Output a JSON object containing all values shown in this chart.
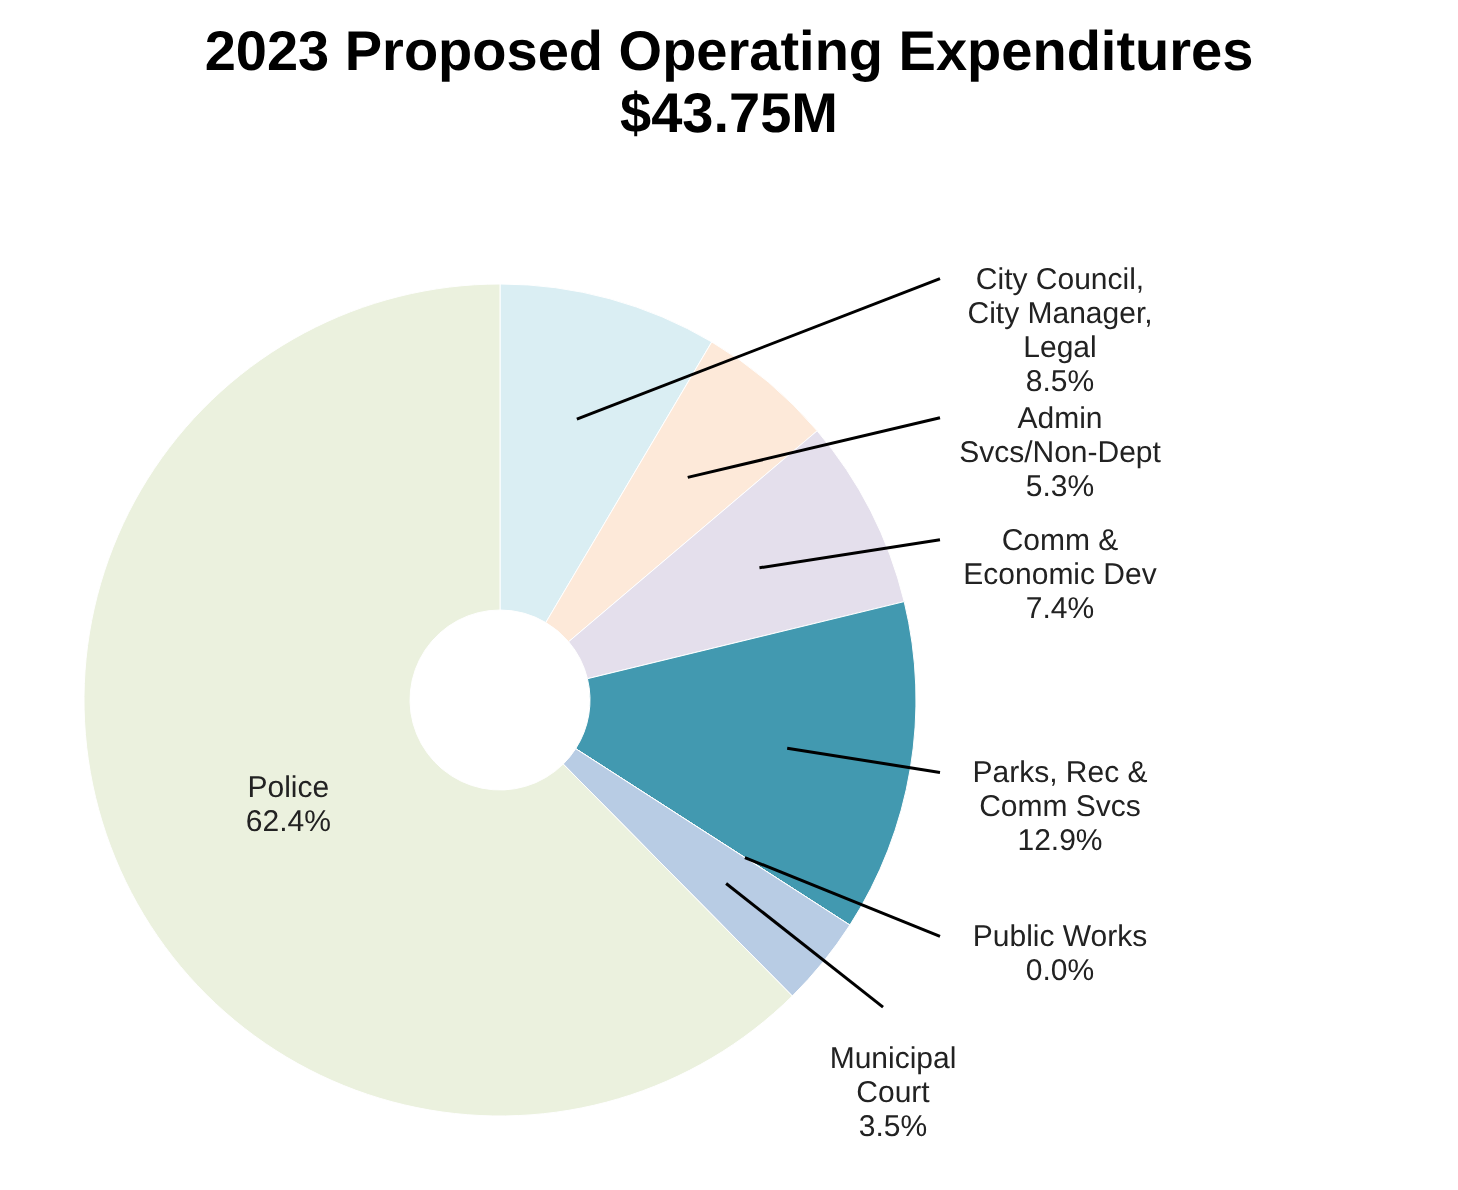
{
  "chart_data": {
    "type": "donut",
    "title": "2023 Proposed Operating Expenditures",
    "subtitle": "$43.75M",
    "categories": [
      "City Council, City Manager, Legal",
      "Admin Svcs/Non-Dept",
      "Comm & Economic Dev",
      "Parks, Rec & Comm Svcs",
      "Public Works",
      "Municipal Court",
      "Police"
    ],
    "values": [
      8.5,
      5.3,
      7.4,
      12.9,
      0.0,
      3.5,
      62.4
    ],
    "colors": [
      "#daeef3",
      "#fde9d9",
      "#e4dfec",
      "#4299b0",
      "#9bbb59",
      "#b8cce4",
      "#ebf1de"
    ],
    "value_labels": [
      "8.5%",
      "5.3%",
      "7.4%",
      "12.9%",
      "0.0%",
      "3.5%",
      "62.4%"
    ]
  }
}
